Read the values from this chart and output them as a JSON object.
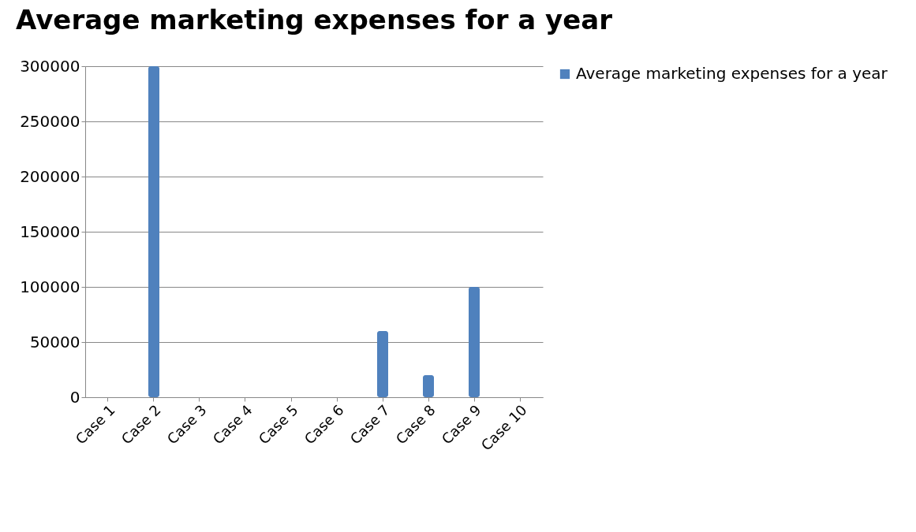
{
  "chart_data": {
    "type": "bar",
    "title": "Average marketing expenses for a year",
    "categories": [
      "Case 1",
      "Case 2",
      "Case 3",
      "Case 4",
      "Case 5",
      "Case 6",
      "Case 7",
      "Case 8",
      "Case 9",
      "Case 10"
    ],
    "series": [
      {
        "name": "Average marketing expenses for a year",
        "color": "#4f81bd",
        "values": [
          0,
          300000,
          0,
          0,
          0,
          0,
          60000,
          20000,
          100000,
          0
        ]
      }
    ],
    "ylim": [
      0,
      300000
    ],
    "yticks": [
      0,
      50000,
      100000,
      150000,
      200000,
      250000,
      300000
    ],
    "grid": "y",
    "legend": "right"
  }
}
